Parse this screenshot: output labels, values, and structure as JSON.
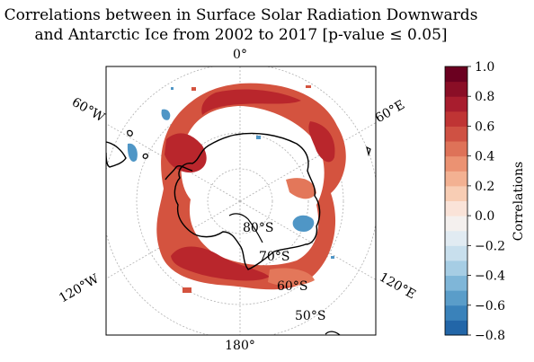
{
  "title_line1": "Correlations between in Surface Solar Radiation Downwards",
  "title_line2": "and Antarctic Ice from 2002 to 2017 [p-value ≤ 0.05]",
  "meridian_labels": {
    "top": "0°",
    "top_right": "60°E",
    "bottom_right": "120°E",
    "bottom": "180°",
    "bottom_left": "120°W",
    "top_left": "60°W"
  },
  "latitude_labels": [
    "80°S",
    "70°S",
    "60°S",
    "50°S"
  ],
  "colorbar": {
    "label": "Correlations",
    "ticks": [
      "1.0",
      "0.8",
      "0.6",
      "0.4",
      "0.2",
      "0.0",
      "−0.2",
      "−0.4",
      "−0.6",
      "−0.8"
    ],
    "min": -0.8,
    "max": 1.0,
    "colors": [
      "#2266a8",
      "#3a82ba",
      "#5a9dc9",
      "#7fb6d8",
      "#a6cde4",
      "#c8dfed",
      "#e1ebf2",
      "#f4f0ee",
      "#fae3d8",
      "#f8cdb4",
      "#f3b192",
      "#eb9272",
      "#de7258",
      "#cf5143",
      "#bf3434",
      "#a81d2e",
      "#8a0e26",
      "#6b0020"
    ]
  },
  "colors": {
    "strong_positive": "#b9262c",
    "positive": "#d4533f",
    "weak_positive": "#e3775a",
    "negative": "#4f96c6",
    "coastline": "#000000",
    "grid": "#b0b0b0"
  }
}
